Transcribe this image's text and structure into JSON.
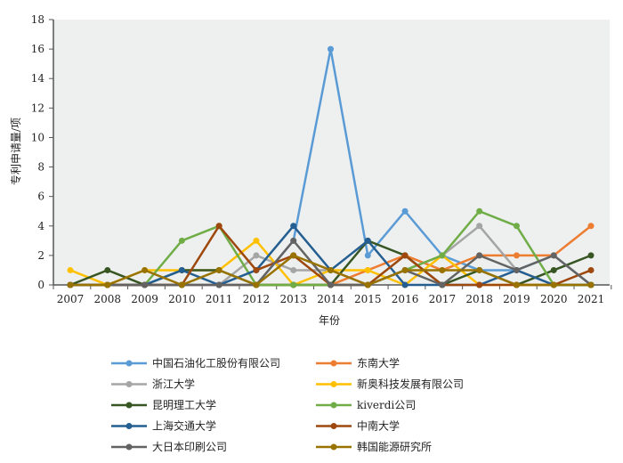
{
  "chart_data": {
    "type": "line",
    "title": "",
    "xlabel": "年份",
    "ylabel": "专利申请量/项",
    "ylim": [
      0,
      18
    ],
    "yticks": [
      0,
      2,
      4,
      6,
      8,
      10,
      12,
      14,
      16,
      18
    ],
    "x": [
      "2007",
      "2008",
      "2009",
      "2010",
      "2011",
      "2012",
      "2013",
      "2014",
      "2015",
      "2016",
      "2017",
      "2018",
      "2019",
      "2020",
      "2021"
    ],
    "grid": false,
    "legend_placement": "bottom",
    "series": [
      {
        "name": "中国石油化工股份有限公司",
        "color": "#5b9bd5",
        "values": [
          0,
          0,
          0,
          0,
          0,
          0,
          3,
          16,
          2,
          5,
          2,
          1,
          1,
          2,
          0
        ]
      },
      {
        "name": "东南大学",
        "color": "#ed7d31",
        "values": [
          0,
          0,
          0,
          0,
          0,
          0,
          0,
          0,
          1,
          2,
          1,
          2,
          2,
          2,
          4
        ]
      },
      {
        "name": "浙江大学",
        "color": "#a5a5a5",
        "values": [
          0,
          0,
          0,
          0,
          0,
          2,
          1,
          1,
          0,
          1,
          2,
          4,
          1,
          0,
          0
        ]
      },
      {
        "name": "新奥科技发展有限公司",
        "color": "#ffc000",
        "values": [
          1,
          0,
          1,
          1,
          1,
          3,
          0,
          1,
          1,
          0,
          2,
          0,
          0,
          0,
          0
        ]
      },
      {
        "name": "昆明理工大学",
        "color": "#375623",
        "values": [
          0,
          1,
          0,
          1,
          1,
          0,
          0,
          0,
          3,
          2,
          0,
          1,
          0,
          1,
          2
        ]
      },
      {
        "name": "kiverdi公司",
        "color": "#70ad47",
        "values": [
          0,
          0,
          0,
          3,
          4,
          0,
          0,
          0,
          0,
          1,
          2,
          5,
          4,
          0,
          0
        ]
      },
      {
        "name": "上海交通大学",
        "color": "#255e91",
        "values": [
          0,
          0,
          0,
          1,
          0,
          1,
          4,
          1,
          3,
          0,
          0,
          0,
          1,
          0,
          0
        ]
      },
      {
        "name": "中南大学",
        "color": "#9e480e",
        "values": [
          0,
          0,
          0,
          0,
          4,
          1,
          2,
          0,
          0,
          2,
          0,
          0,
          0,
          0,
          1
        ]
      },
      {
        "name": "大日本印刷公司",
        "color": "#636363",
        "values": [
          0,
          0,
          0,
          0,
          0,
          0,
          3,
          0,
          0,
          1,
          0,
          2,
          1,
          2,
          0
        ]
      },
      {
        "name": "韩国能源研究所",
        "color": "#997300",
        "values": [
          0,
          0,
          1,
          0,
          1,
          0,
          2,
          1,
          0,
          1,
          1,
          1,
          0,
          0,
          0
        ]
      }
    ]
  }
}
